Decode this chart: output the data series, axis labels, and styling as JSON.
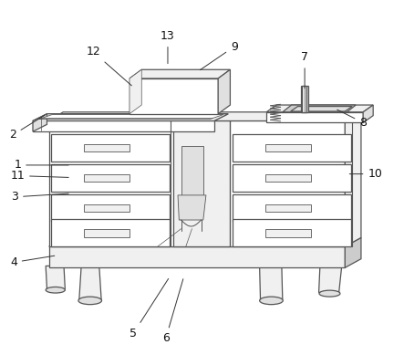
{
  "background_color": "#ffffff",
  "figure_width": 4.43,
  "figure_height": 3.89,
  "dpi": 100,
  "line_color": "#555555",
  "dark_fill": "#cccccc",
  "mid_fill": "#e0e0e0",
  "light_fill": "#f0f0f0",
  "white_fill": "#ffffff",
  "label_fontsize": 9,
  "labels": {
    "1": {
      "tp": [
        0.042,
        0.535
      ],
      "ap": [
        0.175,
        0.535
      ]
    },
    "11": {
      "tp": [
        0.042,
        0.505
      ],
      "ap": [
        0.175,
        0.5
      ]
    },
    "2": {
      "tp": [
        0.03,
        0.62
      ],
      "ap": [
        0.115,
        0.68
      ]
    },
    "3": {
      "tp": [
        0.035,
        0.445
      ],
      "ap": [
        0.175,
        0.455
      ]
    },
    "4": {
      "tp": [
        0.032,
        0.26
      ],
      "ap": [
        0.14,
        0.28
      ]
    },
    "5": {
      "tp": [
        0.33,
        0.06
      ],
      "ap": [
        0.42,
        0.22
      ]
    },
    "6": {
      "tp": [
        0.41,
        0.045
      ],
      "ap": [
        0.455,
        0.22
      ]
    },
    "7": {
      "tp": [
        0.755,
        0.84
      ],
      "ap": [
        0.755,
        0.745
      ]
    },
    "8": {
      "tp": [
        0.9,
        0.655
      ],
      "ap": [
        0.83,
        0.695
      ]
    },
    "9": {
      "tp": [
        0.58,
        0.87
      ],
      "ap": [
        0.49,
        0.8
      ]
    },
    "10": {
      "tp": [
        0.93,
        0.51
      ],
      "ap": [
        0.86,
        0.51
      ]
    },
    "12": {
      "tp": [
        0.23,
        0.855
      ],
      "ap": [
        0.33,
        0.755
      ]
    },
    "13": {
      "tp": [
        0.415,
        0.9
      ],
      "ap": [
        0.415,
        0.815
      ]
    }
  }
}
